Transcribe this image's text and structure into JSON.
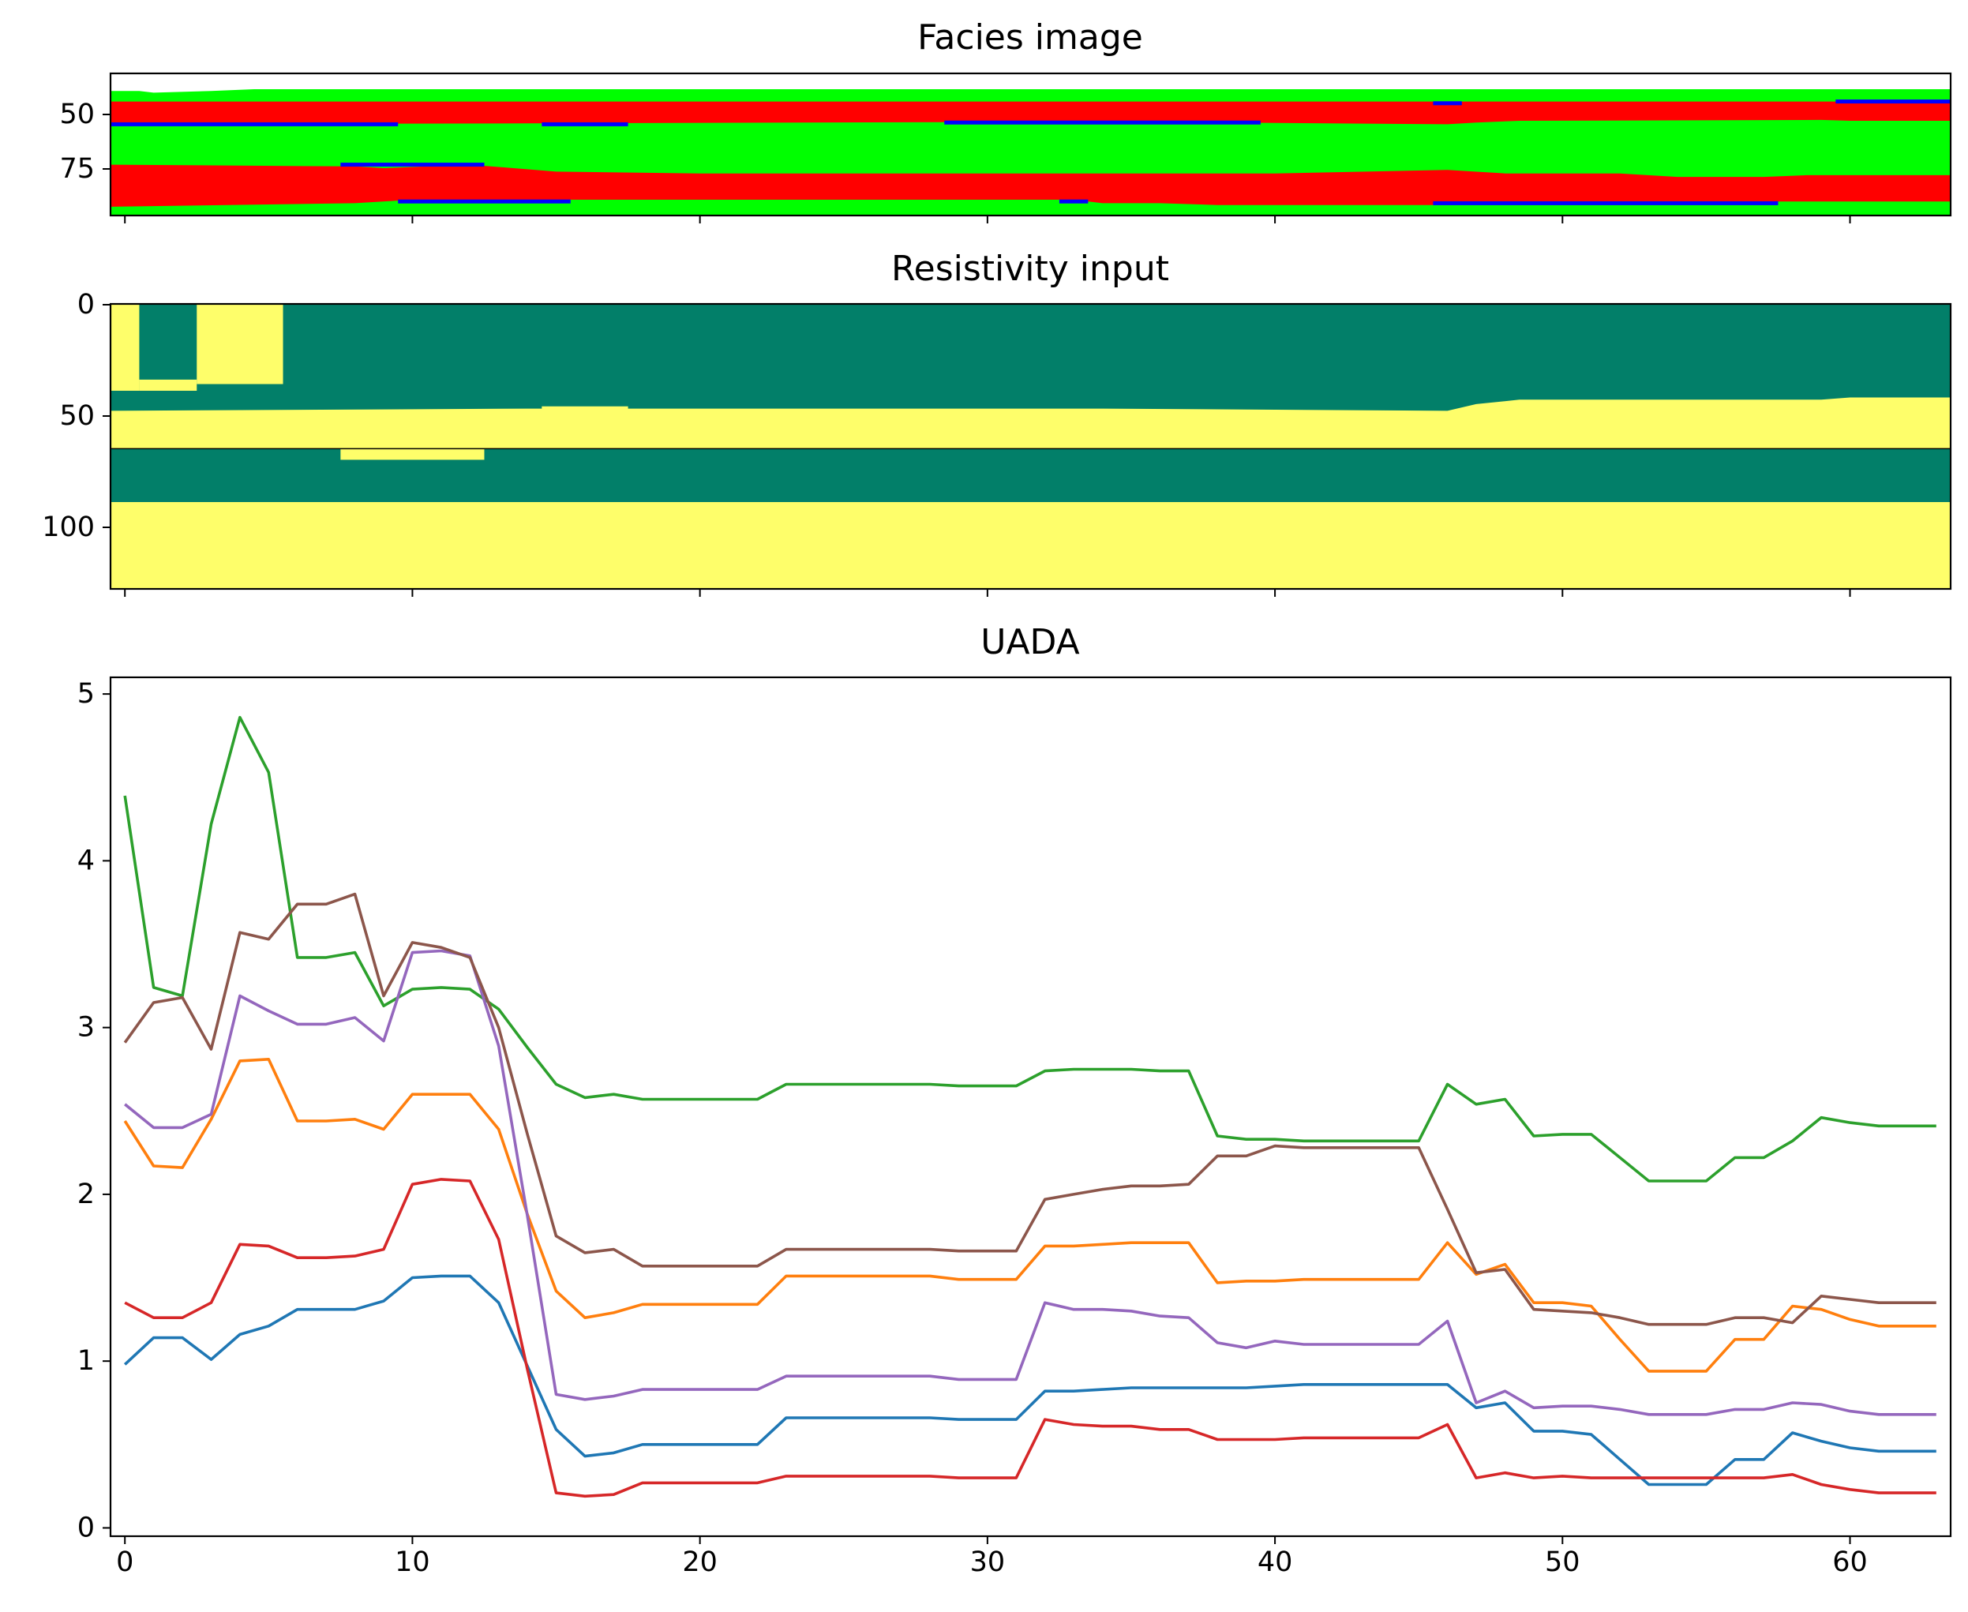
{
  "chart_data": [
    {
      "type": "heatmap",
      "title": "Facies image",
      "ytick_labels": [
        "50",
        "75"
      ],
      "xlim": [
        -0.5,
        63.5
      ],
      "colors": {
        "red": "#ff0000",
        "green": "#00ff00",
        "blue": "#0000ff"
      },
      "boundaries": [
        {
          "color": "#00ff00",
          "points": [
            [
              -0.5,
              32
            ],
            [
              0.5,
              32
            ],
            [
              1,
              33
            ],
            [
              3,
              32
            ],
            [
              4.5,
              31
            ],
            [
              5.5,
              31
            ],
            [
              63.5,
              31
            ]
          ]
        },
        {
          "color": "#ff0000",
          "points": [
            [
              -0.5,
              38
            ],
            [
              63.5,
              38
            ]
          ]
        },
        {
          "color": "#00ff00",
          "points": [
            [
              -0.5,
              51
            ],
            [
              14,
              50.5
            ],
            [
              34,
              49.5
            ],
            [
              46,
              51
            ],
            [
              47,
              50
            ],
            [
              48.5,
              49
            ],
            [
              59,
              48.5
            ],
            [
              60,
              49
            ],
            [
              63.5,
              49
            ]
          ]
        },
        {
          "color": "#ff0000",
          "points": [
            [
              -0.5,
              74
            ],
            [
              8,
              75
            ],
            [
              9,
              76
            ],
            [
              12,
              74
            ],
            [
              15,
              78
            ],
            [
              20,
              79
            ],
            [
              32,
              79
            ],
            [
              40,
              79
            ],
            [
              46,
              77
            ],
            [
              48,
              79
            ],
            [
              52,
              79
            ],
            [
              54,
              81
            ],
            [
              57,
              81
            ],
            [
              58.5,
              80
            ],
            [
              63.5,
              80
            ]
          ]
        },
        {
          "color": "#00ff00",
          "points": [
            [
              -0.5,
              98
            ],
            [
              8,
              96
            ],
            [
              10,
              94
            ],
            [
              15,
              94
            ],
            [
              20,
              94
            ],
            [
              33,
              94
            ],
            [
              34,
              96
            ],
            [
              36,
              96
            ],
            [
              38,
              97
            ],
            [
              40,
              97
            ],
            [
              42,
              97
            ],
            [
              46,
              97
            ],
            [
              48,
              96
            ],
            [
              52,
              96
            ],
            [
              55,
              95
            ],
            [
              63.5,
              95
            ]
          ]
        }
      ],
      "blue_streaks": [
        {
          "x": [
            -0.5,
            9.5
          ],
          "depth": 51
        },
        {
          "x": [
            14.5,
            17.5
          ],
          "depth": 51
        },
        {
          "x": [
            28.5,
            39.5
          ],
          "depth": 50
        },
        {
          "x": [
            7.5,
            12.5
          ],
          "depth": 74
        },
        {
          "x": [
            9.5,
            15.5
          ],
          "depth": 95
        },
        {
          "x": [
            32.5,
            33.5
          ],
          "depth": 95
        },
        {
          "x": [
            45.5,
            57.5
          ],
          "depth": 96
        },
        {
          "x": [
            45.5,
            46.5
          ],
          "depth": 39
        },
        {
          "x": [
            59.5,
            63.5
          ],
          "depth": 38
        }
      ]
    },
    {
      "type": "heatmap",
      "title": "Resistivity input",
      "ytick_labels": [
        "0",
        "50",
        "100"
      ],
      "xlim": [
        -0.5,
        63.5
      ],
      "ylim": [
        128,
        0
      ],
      "colors": {
        "low": "#027f69",
        "high": "#fefe6a",
        "mid": "#3d9f64"
      },
      "interface_depth": 65,
      "boundaries": [
        {
          "color": "#027f69",
          "points": [
            [
              -0.5,
              0
            ],
            [
              63.5,
              0
            ]
          ]
        },
        {
          "color": "#fefe6a",
          "points": [
            [
              -0.5,
              48
            ],
            [
              14,
              47
            ],
            [
              34,
              47
            ],
            [
              46,
              48
            ],
            [
              47,
              45
            ],
            [
              48.5,
              43
            ],
            [
              59,
              43
            ],
            [
              60,
              42
            ],
            [
              63.5,
              42
            ]
          ]
        },
        {
          "color": "#027f69",
          "points": [
            [
              -0.5,
              65
            ],
            [
              63.5,
              65
            ]
          ]
        },
        {
          "color": "#fefe6a",
          "points": [
            [
              -0.5,
              89
            ],
            [
              63.5,
              89
            ]
          ]
        }
      ],
      "yellow_blocks": [
        {
          "x": [
            -0.5,
            0.5
          ],
          "depth": [
            0,
            39
          ]
        },
        {
          "x": [
            0.5,
            2.5
          ],
          "depth": [
            34,
            39
          ]
        },
        {
          "x": [
            2.5,
            5.5
          ],
          "depth": [
            0,
            36
          ]
        },
        {
          "x": [
            14.5,
            17.5
          ],
          "depth": [
            46,
            52
          ]
        },
        {
          "x": [
            7.5,
            12.5
          ],
          "depth": [
            65,
            70
          ]
        },
        {
          "x": [
            -0.5,
            8.5
          ],
          "depth": [
            89,
            128
          ]
        },
        {
          "x": [
            8.5,
            10.5
          ],
          "depth": [
            89,
            93
          ]
        },
        {
          "x": [
            32.5,
            37.5
          ],
          "depth": [
            89,
            94
          ]
        },
        {
          "x": [
            37.5,
            45.5
          ],
          "depth": [
            89,
            128
          ]
        },
        {
          "x": [
            45.5,
            52.5
          ],
          "depth": [
            89,
            94
          ]
        }
      ]
    },
    {
      "type": "line",
      "title": "UADA",
      "x": [
        0,
        1,
        2,
        3,
        4,
        5,
        6,
        7,
        8,
        9,
        10,
        11,
        12,
        13,
        14,
        15,
        16,
        17,
        18,
        19,
        20,
        21,
        22,
        23,
        24,
        25,
        26,
        27,
        28,
        29,
        30,
        31,
        32,
        33,
        34,
        35,
        36,
        37,
        38,
        39,
        40,
        41,
        42,
        43,
        44,
        45,
        46,
        47,
        48,
        49,
        50,
        51,
        52,
        53,
        54,
        55,
        56,
        57,
        58,
        59,
        60,
        61,
        62,
        63
      ],
      "xlim": [
        -0.5,
        63.5
      ],
      "ylim": [
        -0.05,
        5.1
      ],
      "xticks": [
        0,
        10,
        20,
        30,
        40,
        50,
        60
      ],
      "yticks": [
        0,
        1,
        2,
        3,
        4,
        5
      ],
      "series": [
        {
          "color": "#1f77b4",
          "values": [
            0.98,
            1.14,
            1.14,
            1.01,
            1.16,
            1.21,
            1.31,
            1.31,
            1.31,
            1.36,
            1.5,
            1.51,
            1.51,
            1.35,
            0.97,
            0.59,
            0.43,
            0.45,
            0.5,
            0.5,
            0.5,
            0.5,
            0.5,
            0.66,
            0.66,
            0.66,
            0.66,
            0.66,
            0.66,
            0.65,
            0.65,
            0.65,
            0.82,
            0.82,
            0.83,
            0.84,
            0.84,
            0.84,
            0.84,
            0.84,
            0.85,
            0.86,
            0.86,
            0.86,
            0.86,
            0.86,
            0.86,
            0.72,
            0.75,
            0.58,
            0.58,
            0.56,
            0.41,
            0.26,
            0.26,
            0.26,
            0.41,
            0.41,
            0.57,
            0.52,
            0.48,
            0.46,
            0.46,
            0.46
          ]
        },
        {
          "color": "#ff7f0e",
          "values": [
            2.44,
            2.17,
            2.16,
            2.45,
            2.8,
            2.81,
            2.44,
            2.44,
            2.45,
            2.39,
            2.6,
            2.6,
            2.6,
            2.39,
            1.88,
            1.42,
            1.26,
            1.29,
            1.34,
            1.34,
            1.34,
            1.34,
            1.34,
            1.51,
            1.51,
            1.51,
            1.51,
            1.51,
            1.51,
            1.49,
            1.49,
            1.49,
            1.69,
            1.69,
            1.7,
            1.71,
            1.71,
            1.71,
            1.47,
            1.48,
            1.48,
            1.49,
            1.49,
            1.49,
            1.49,
            1.49,
            1.71,
            1.52,
            1.58,
            1.35,
            1.35,
            1.33,
            1.13,
            0.94,
            0.94,
            0.94,
            1.13,
            1.13,
            1.33,
            1.31,
            1.25,
            1.21,
            1.21,
            1.21
          ]
        },
        {
          "color": "#2ca02c",
          "values": [
            4.39,
            3.24,
            3.19,
            4.22,
            4.86,
            4.53,
            3.42,
            3.42,
            3.45,
            3.13,
            3.23,
            3.24,
            3.23,
            3.11,
            2.88,
            2.66,
            2.58,
            2.6,
            2.57,
            2.57,
            2.57,
            2.57,
            2.57,
            2.66,
            2.66,
            2.66,
            2.66,
            2.66,
            2.66,
            2.65,
            2.65,
            2.65,
            2.74,
            2.75,
            2.75,
            2.75,
            2.74,
            2.74,
            2.35,
            2.33,
            2.33,
            2.32,
            2.32,
            2.32,
            2.32,
            2.32,
            2.66,
            2.54,
            2.57,
            2.35,
            2.36,
            2.36,
            2.22,
            2.08,
            2.08,
            2.08,
            2.22,
            2.22,
            2.32,
            2.46,
            2.43,
            2.41,
            2.41,
            2.41
          ]
        },
        {
          "color": "#d62728",
          "values": [
            1.35,
            1.26,
            1.26,
            1.35,
            1.7,
            1.69,
            1.62,
            1.62,
            1.63,
            1.67,
            2.06,
            2.09,
            2.08,
            1.73,
            0.95,
            0.21,
            0.19,
            0.2,
            0.27,
            0.27,
            0.27,
            0.27,
            0.27,
            0.31,
            0.31,
            0.31,
            0.31,
            0.31,
            0.31,
            0.3,
            0.3,
            0.3,
            0.65,
            0.62,
            0.61,
            0.61,
            0.59,
            0.59,
            0.53,
            0.53,
            0.53,
            0.54,
            0.54,
            0.54,
            0.54,
            0.54,
            0.62,
            0.3,
            0.33,
            0.3,
            0.31,
            0.3,
            0.3,
            0.3,
            0.3,
            0.3,
            0.3,
            0.3,
            0.32,
            0.26,
            0.23,
            0.21,
            0.21,
            0.21
          ]
        },
        {
          "color": "#9467bd",
          "values": [
            2.54,
            2.4,
            2.4,
            2.48,
            3.19,
            3.1,
            3.02,
            3.02,
            3.06,
            2.92,
            3.45,
            3.46,
            3.43,
            2.89,
            1.87,
            0.8,
            0.77,
            0.79,
            0.83,
            0.83,
            0.83,
            0.83,
            0.83,
            0.91,
            0.91,
            0.91,
            0.91,
            0.91,
            0.91,
            0.89,
            0.89,
            0.89,
            1.35,
            1.31,
            1.31,
            1.3,
            1.27,
            1.26,
            1.11,
            1.08,
            1.12,
            1.1,
            1.1,
            1.1,
            1.1,
            1.1,
            1.24,
            0.75,
            0.82,
            0.72,
            0.73,
            0.73,
            0.71,
            0.68,
            0.68,
            0.68,
            0.71,
            0.71,
            0.75,
            0.74,
            0.7,
            0.68,
            0.68,
            0.68
          ]
        },
        {
          "color": "#8c564b",
          "values": [
            2.91,
            3.15,
            3.18,
            2.87,
            3.57,
            3.53,
            3.74,
            3.74,
            3.8,
            3.19,
            3.51,
            3.48,
            3.42,
            3.0,
            2.36,
            1.75,
            1.65,
            1.67,
            1.57,
            1.57,
            1.57,
            1.57,
            1.57,
            1.67,
            1.67,
            1.67,
            1.67,
            1.67,
            1.67,
            1.66,
            1.66,
            1.66,
            1.97,
            2.0,
            2.03,
            2.05,
            2.05,
            2.06,
            2.23,
            2.23,
            2.29,
            2.28,
            2.28,
            2.28,
            2.28,
            2.28,
            1.91,
            1.53,
            1.55,
            1.31,
            1.3,
            1.29,
            1.26,
            1.22,
            1.22,
            1.22,
            1.26,
            1.26,
            1.23,
            1.39,
            1.37,
            1.35,
            1.35,
            1.35
          ]
        }
      ]
    }
  ]
}
